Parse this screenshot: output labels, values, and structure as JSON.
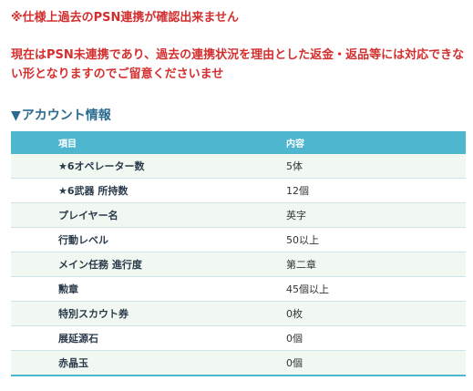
{
  "notice_line1": "※仕様上過去のPSN連携が確認出来ません",
  "notice_line2": "現在はPSN未連携であり、過去の連携状況を理由とした返金・返品等には対応できない形となりますのでご留意くださいませ",
  "section": {
    "marker": "▼",
    "title": "アカウント情報"
  },
  "table": {
    "headers": [
      "項目",
      "内容"
    ],
    "rows": [
      {
        "item": "★6オペレーター数",
        "value": "5体"
      },
      {
        "item": "★6武器 所持数",
        "value": "12個"
      },
      {
        "item": "プレイヤー名",
        "value": "英字"
      },
      {
        "item": "行動レベル",
        "value": "50以上"
      },
      {
        "item": "メイン任務 進行度",
        "value": "第二章"
      },
      {
        "item": "勲章",
        "value": "45個以上"
      },
      {
        "item": "特別スカウト券",
        "value": "0枚"
      },
      {
        "item": "展延源石",
        "value": "0個"
      },
      {
        "item": "赤晶玉",
        "value": "0個"
      }
    ]
  },
  "colors": {
    "notice": "#d32f2f",
    "heading": "#2b6b8f",
    "table_header": "#4fb6cf",
    "row_alt": "#f1f8f1"
  }
}
